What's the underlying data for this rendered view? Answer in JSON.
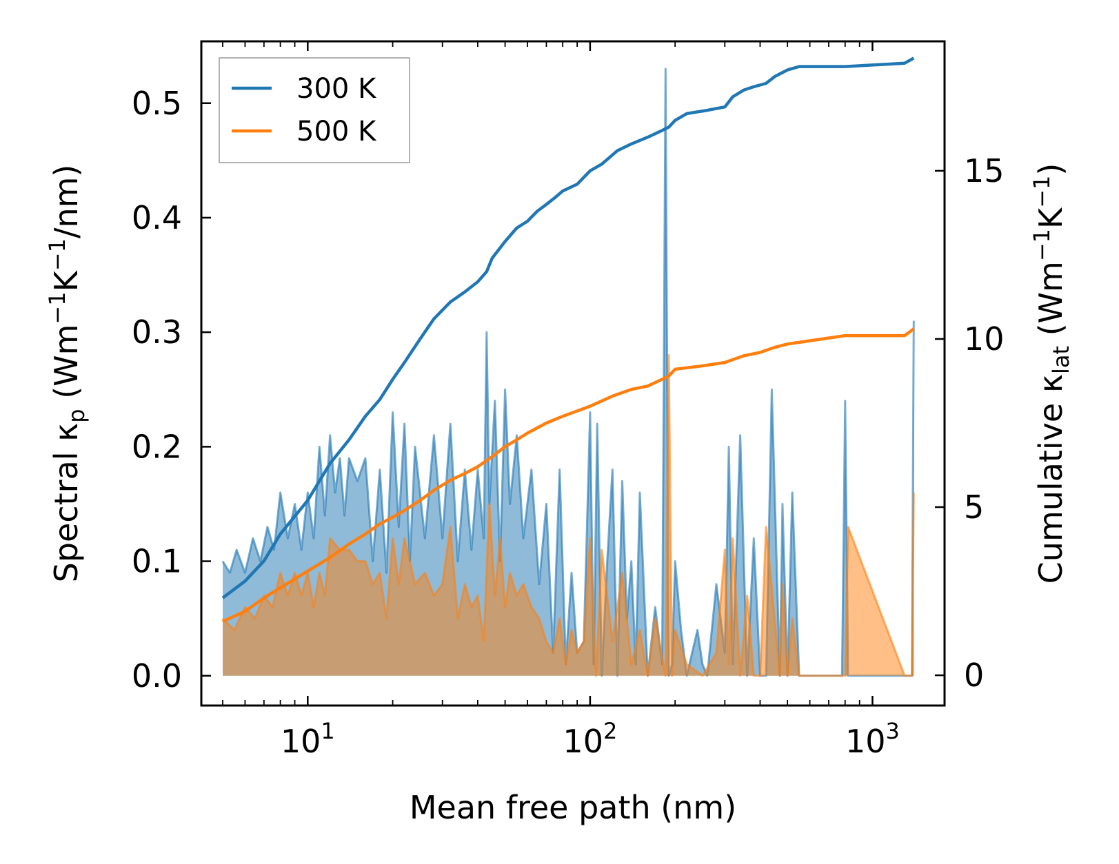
{
  "chart_data": {
    "type": "line",
    "title": "",
    "xlabel": "Mean free path (nm)",
    "ylabel": "Spectral κp (Wm⁻¹K⁻¹/nm)",
    "ylabel_right": "Cumulative κlat (Wm⁻¹K⁻¹)",
    "xscale": "log",
    "xlim": [
      4.2,
      1800
    ],
    "ylim": [
      -0.026,
      0.554
    ],
    "ylim_right": [
      -0.9,
      18.85
    ],
    "x_ticks": [
      {
        "value": 10,
        "base": "10",
        "exp": "1"
      },
      {
        "value": 100,
        "base": "10",
        "exp": "2"
      },
      {
        "value": 1000,
        "base": "10",
        "exp": "3"
      }
    ],
    "y_ticks": [
      {
        "value": 0.0,
        "label": "0.0"
      },
      {
        "value": 0.1,
        "label": "0.1"
      },
      {
        "value": 0.2,
        "label": "0.2"
      },
      {
        "value": 0.3,
        "label": "0.3"
      },
      {
        "value": 0.4,
        "label": "0.4"
      },
      {
        "value": 0.5,
        "label": "0.5"
      }
    ],
    "y_ticks_right": [
      {
        "value": 0,
        "label": "0"
      },
      {
        "value": 5,
        "label": "5"
      },
      {
        "value": 10,
        "label": "10"
      },
      {
        "value": 15,
        "label": "15"
      }
    ],
    "legend": {
      "position": "upper-left",
      "entries": [
        {
          "label": "300 K",
          "color": "#1f77b4"
        },
        {
          "label": "500 K",
          "color": "#ff7f0e"
        }
      ]
    },
    "series": [
      {
        "name": "300 K",
        "color": "#1f77b4",
        "axis": "right",
        "kind": "cumulative",
        "x": [
          5,
          6,
          7,
          8,
          10,
          12,
          14,
          16,
          18,
          20,
          22,
          25,
          28,
          32,
          36,
          40,
          43,
          45,
          50,
          55,
          60,
          65,
          70,
          75,
          80,
          90,
          100,
          110,
          125,
          140,
          160,
          180,
          190,
          200,
          220,
          260,
          300,
          320,
          350,
          380,
          420,
          450,
          500,
          550,
          800,
          1300,
          1400
        ],
        "y": [
          2.3,
          2.8,
          3.4,
          4.2,
          5.2,
          6.3,
          7.0,
          7.7,
          8.2,
          8.8,
          9.3,
          10.0,
          10.6,
          11.1,
          11.4,
          11.7,
          12.0,
          12.4,
          12.9,
          13.3,
          13.5,
          13.8,
          14.0,
          14.2,
          14.4,
          14.6,
          15.0,
          15.2,
          15.6,
          15.8,
          16.0,
          16.2,
          16.3,
          16.5,
          16.7,
          16.8,
          16.9,
          17.2,
          17.4,
          17.5,
          17.6,
          17.8,
          18.0,
          18.1,
          18.1,
          18.2,
          18.35
        ]
      },
      {
        "name": "500 K",
        "color": "#ff7f0e",
        "axis": "right",
        "kind": "cumulative",
        "x": [
          5,
          6,
          7,
          8,
          10,
          12,
          14,
          16,
          18,
          20,
          22,
          25,
          28,
          32,
          36,
          40,
          45,
          50,
          55,
          60,
          70,
          80,
          100,
          120,
          140,
          160,
          180,
          190,
          200,
          250,
          300,
          350,
          400,
          450,
          500,
          550,
          800,
          1300,
          1400
        ],
        "y": [
          1.6,
          1.9,
          2.3,
          2.6,
          3.1,
          3.5,
          3.9,
          4.2,
          4.5,
          4.7,
          4.9,
          5.2,
          5.5,
          5.8,
          6.0,
          6.2,
          6.5,
          6.8,
          7.0,
          7.2,
          7.5,
          7.7,
          8.0,
          8.3,
          8.5,
          8.6,
          8.8,
          8.9,
          9.1,
          9.2,
          9.3,
          9.5,
          9.6,
          9.75,
          9.85,
          9.9,
          10.1,
          10.1,
          10.3
        ]
      },
      {
        "name": "300 K spectral",
        "color": "#1f77b4",
        "axis": "left",
        "kind": "spectral",
        "x": [
          5,
          5.3,
          5.6,
          6,
          6.4,
          6.8,
          7.2,
          7.6,
          8,
          8.5,
          9,
          9.5,
          10,
          10.5,
          11,
          11.5,
          12,
          12.5,
          13,
          13.5,
          14,
          15,
          16,
          17,
          18,
          19,
          20,
          21,
          22,
          23,
          24,
          26,
          28,
          30,
          32,
          34,
          36,
          38,
          40,
          42,
          43,
          44,
          46,
          48,
          50,
          52,
          55,
          58,
          62,
          66,
          70,
          74,
          78,
          82,
          86,
          90,
          95,
          100,
          103,
          106,
          110,
          115,
          120,
          125,
          130,
          135,
          140,
          145,
          150,
          160,
          170,
          180,
          185,
          190,
          195,
          200,
          210,
          220,
          240,
          250,
          260,
          280,
          300,
          310,
          320,
          340,
          360,
          380,
          400,
          420,
          440,
          470,
          480,
          500,
          520,
          550,
          570,
          590,
          780,
          800,
          820,
          1300,
          1380,
          1400
        ],
        "y": [
          0.1,
          0.09,
          0.11,
          0.09,
          0.12,
          0.1,
          0.13,
          0.11,
          0.16,
          0.12,
          0.15,
          0.11,
          0.16,
          0.12,
          0.2,
          0.14,
          0.21,
          0.16,
          0.19,
          0.14,
          0.19,
          0.17,
          0.19,
          0.1,
          0.18,
          0.09,
          0.23,
          0.13,
          0.22,
          0.1,
          0.2,
          0.12,
          0.21,
          0.12,
          0.22,
          0.1,
          0.18,
          0.11,
          0.18,
          0.12,
          0.3,
          0.15,
          0.24,
          0.1,
          0.25,
          0.15,
          0.21,
          0.12,
          0.18,
          0.08,
          0.15,
          0.02,
          0.18,
          0.01,
          0.09,
          0.02,
          0.03,
          0.23,
          0.01,
          0.22,
          0.0,
          0.1,
          0.18,
          0.0,
          0.17,
          0.05,
          0.1,
          0.01,
          0.16,
          0.0,
          0.06,
          0.01,
          0.53,
          0.0,
          0.01,
          0.1,
          0.04,
          0.0,
          0.04,
          0.01,
          0.0,
          0.08,
          0.02,
          0.2,
          0.01,
          0.21,
          0.0,
          0.12,
          0.0,
          0.0,
          0.25,
          0.0,
          0.15,
          0.0,
          0.16,
          0.0,
          0.0,
          0.0,
          0.0,
          0.24,
          0.0,
          0.0,
          0.0,
          0.31
        ]
      },
      {
        "name": "500 K spectral",
        "color": "#ff7f0e",
        "axis": "left",
        "kind": "spectral",
        "x": [
          5,
          5.5,
          6,
          6.5,
          7,
          7.5,
          8,
          8.5,
          9,
          9.5,
          10,
          10.5,
          11,
          11.5,
          12,
          13,
          14,
          15,
          16,
          17,
          18,
          19,
          20,
          21,
          22,
          24,
          26,
          28,
          30,
          32,
          34,
          36,
          38,
          40,
          42,
          44,
          46,
          48,
          50,
          52,
          55,
          58,
          62,
          66,
          70,
          74,
          78,
          82,
          86,
          90,
          95,
          100,
          105,
          110,
          120,
          130,
          140,
          150,
          160,
          170,
          185,
          190,
          195,
          200,
          220,
          250,
          280,
          300,
          310,
          320,
          340,
          360,
          380,
          400,
          420,
          470,
          480,
          500,
          520,
          550,
          570,
          800,
          820,
          1300,
          1380,
          1400
        ],
        "y": [
          0.05,
          0.04,
          0.06,
          0.05,
          0.07,
          0.06,
          0.09,
          0.07,
          0.09,
          0.07,
          0.09,
          0.06,
          0.09,
          0.07,
          0.12,
          0.11,
          0.11,
          0.1,
          0.1,
          0.08,
          0.09,
          0.05,
          0.12,
          0.08,
          0.12,
          0.08,
          0.09,
          0.07,
          0.08,
          0.13,
          0.05,
          0.08,
          0.06,
          0.07,
          0.03,
          0.15,
          0.07,
          0.12,
          0.06,
          0.09,
          0.07,
          0.08,
          0.06,
          0.05,
          0.03,
          0.02,
          0.05,
          0.01,
          0.04,
          0.02,
          0.03,
          0.12,
          0.0,
          0.11,
          0.03,
          0.09,
          0.01,
          0.04,
          0.0,
          0.05,
          0.0,
          0.28,
          0.0,
          0.04,
          0.01,
          0.0,
          0.02,
          0.11,
          0.01,
          0.12,
          0.0,
          0.07,
          0.0,
          0.0,
          0.13,
          0.0,
          0.08,
          0.0,
          0.05,
          0.0,
          0.0,
          0.0,
          0.13,
          0.0,
          0.0,
          0.16
        ]
      }
    ]
  }
}
